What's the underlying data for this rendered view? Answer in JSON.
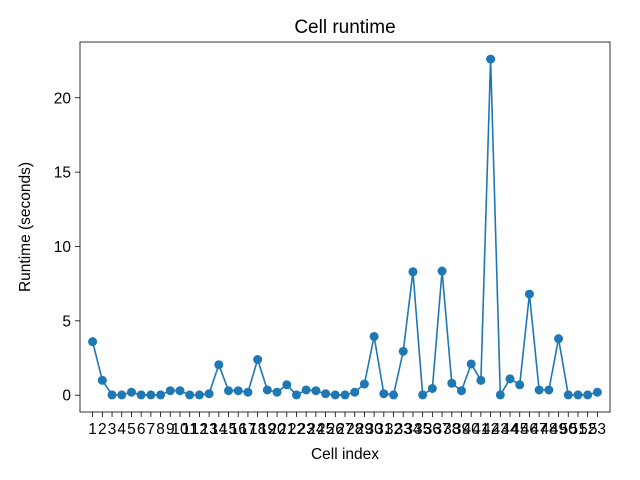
{
  "chart_data": {
    "type": "line",
    "title": "Cell runtime",
    "xlabel": "Cell index",
    "ylabel": "Runtime (seconds)",
    "x": [
      1,
      2,
      3,
      4,
      5,
      6,
      7,
      8,
      9,
      10,
      11,
      12,
      13,
      14,
      15,
      16,
      17,
      18,
      19,
      20,
      21,
      22,
      23,
      24,
      25,
      26,
      27,
      28,
      29,
      30,
      31,
      32,
      33,
      34,
      35,
      36,
      37,
      38,
      39,
      40,
      41,
      42,
      43,
      44,
      45,
      46,
      47,
      48,
      49,
      50,
      51,
      52,
      53
    ],
    "series": [
      {
        "color": "#1f77b4",
        "marker": "circle",
        "values": [
          3.6,
          1.0,
          0.02,
          0.02,
          0.2,
          0.02,
          0.02,
          0.02,
          0.3,
          0.3,
          0.02,
          0.02,
          0.1,
          2.05,
          0.3,
          0.3,
          0.2,
          2.4,
          0.35,
          0.2,
          0.7,
          0.02,
          0.35,
          0.3,
          0.1,
          0.02,
          0.02,
          0.2,
          0.75,
          3.95,
          0.1,
          0.02,
          2.95,
          8.3,
          0.02,
          0.45,
          8.35,
          0.8,
          0.3,
          2.1,
          1.0,
          22.6,
          0.02,
          1.1,
          0.7,
          6.8,
          0.35,
          0.35,
          3.8,
          0.02,
          0.02,
          0.02,
          0.2
        ]
      }
    ],
    "xticks": [
      1,
      2,
      3,
      4,
      5,
      6,
      7,
      8,
      9,
      10,
      11,
      12,
      13,
      14,
      15,
      16,
      17,
      18,
      19,
      20,
      21,
      22,
      23,
      24,
      25,
      26,
      27,
      28,
      29,
      30,
      31,
      32,
      33,
      34,
      35,
      36,
      37,
      38,
      39,
      40,
      41,
      42,
      43,
      44,
      45,
      46,
      47,
      48,
      49,
      50,
      51,
      52,
      53
    ],
    "yticks": [
      0,
      5,
      10,
      15,
      20
    ],
    "xlim": [
      -0.3,
      54.3
    ],
    "ylim": [
      -1.13,
      23.75
    ],
    "grid": false
  }
}
